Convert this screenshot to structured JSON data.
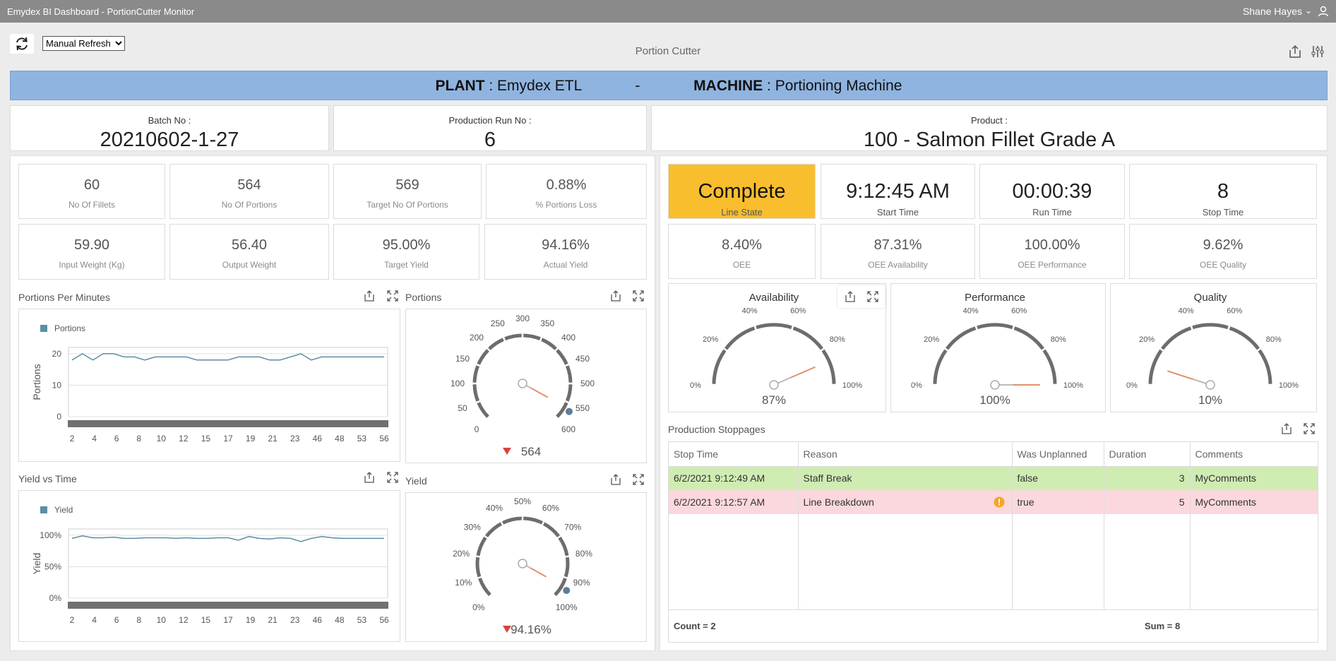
{
  "window": {
    "title": "Emydex BI  Dashboard - PortionCutter Monitor",
    "user": "Shane Hayes"
  },
  "toolbar": {
    "refresh_mode": "Manual Refresh",
    "dashboard_title": "Portion Cutter"
  },
  "banner": {
    "plant_label": "PLANT",
    "plant_value": "Emydex ETL",
    "separator": "-",
    "machine_label": "MACHINE",
    "machine_value": "Portioning Machine"
  },
  "header": {
    "batch": {
      "label": "Batch No :",
      "value": "20210602-1-27"
    },
    "run": {
      "label": "Production Run No :",
      "value": "6"
    },
    "product": {
      "label": "Product :",
      "value": "100  -  Salmon Fillet Grade A"
    }
  },
  "left_kpis": [
    {
      "value": "60",
      "label": "No Of Fillets"
    },
    {
      "value": "564",
      "label": "No Of Portions"
    },
    {
      "value": "569",
      "label": "Target No Of Portions"
    },
    {
      "value": "0.88%",
      "label": "% Portions Loss"
    },
    {
      "value": "59.90",
      "label": "Input Weight (Kg)"
    },
    {
      "value": "56.40",
      "label": "Output Weight"
    },
    {
      "value": "95.00%",
      "label": "Target Yield"
    },
    {
      "value": "94.16%",
      "label": "Actual Yield"
    }
  ],
  "right_kpis_top": [
    {
      "value": "Complete",
      "label": "Line State"
    },
    {
      "value": "9:12:45 AM",
      "label": "Start Time"
    },
    {
      "value": "00:00:39",
      "label": "Run Time"
    },
    {
      "value": "8",
      "label": "Stop Time"
    }
  ],
  "right_kpis_bottom": [
    {
      "value": "8.40%",
      "label": "OEE"
    },
    {
      "value": "87.31%",
      "label": "OEE Availability"
    },
    {
      "value": "100.00%",
      "label": "OEE Performance"
    },
    {
      "value": "9.62%",
      "label": "OEE Quality"
    }
  ],
  "colors": {
    "line": "#5b8fa3",
    "needle": "#e0916a",
    "complete": "#f9be2d",
    "banner": "#8fb4df",
    "arrow_down": "#d9443a"
  },
  "chart_data": [
    {
      "type": "line",
      "title": "Portions Per Minutes",
      "ylabel": "Portions",
      "legend": "Portions",
      "ylim": [
        0,
        22
      ],
      "yticks": [
        0,
        10,
        20
      ],
      "xtick_labels": [
        "2",
        "4",
        "6",
        "8",
        "10",
        "12",
        "15",
        "17",
        "19",
        "21",
        "23",
        "46",
        "48",
        "53",
        "56"
      ],
      "series": [
        {
          "name": "Portions",
          "values": [
            18,
            20,
            18,
            20,
            20,
            19,
            19,
            18,
            19,
            19,
            19,
            19,
            18,
            18,
            18,
            18,
            19,
            19,
            19,
            18,
            18,
            19,
            20,
            18,
            19,
            19,
            19,
            19,
            19,
            19,
            19
          ]
        }
      ]
    },
    {
      "type": "line",
      "title": "Yield vs Time",
      "ylabel": "Yield",
      "legend": "Yield",
      "ylim": [
        0,
        110
      ],
      "yticks": [
        "0%",
        "50%",
        "100%"
      ],
      "yvals": [
        0,
        50,
        100
      ],
      "xtick_labels": [
        "2",
        "4",
        "6",
        "8",
        "10",
        "12",
        "15",
        "17",
        "19",
        "21",
        "23",
        "46",
        "48",
        "53",
        "56"
      ],
      "series": [
        {
          "name": "Yield",
          "values": [
            95,
            99,
            96,
            96,
            97,
            95,
            95,
            96,
            96,
            96,
            95,
            96,
            95,
            95,
            96,
            96,
            92,
            98,
            95,
            94,
            96,
            95,
            90,
            95,
            98,
            96,
            95,
            95,
            95,
            95,
            95
          ]
        }
      ]
    }
  ],
  "gauges": {
    "portions": {
      "title": "Portions",
      "min": 0,
      "max": 600,
      "value": 564,
      "value_label": "564",
      "ticks": [
        "0",
        "50",
        "100",
        "150",
        "200",
        "250",
        "300",
        "350",
        "400",
        "450",
        "500",
        "550",
        "600"
      ],
      "target": 569
    },
    "yield": {
      "title": "Yield",
      "min": 0,
      "max": 100,
      "value": 94.16,
      "value_label": "94.16%",
      "ticks": [
        "0%",
        "10%",
        "20%",
        "30%",
        "40%",
        "50%",
        "60%",
        "70%",
        "80%",
        "90%",
        "100%"
      ],
      "target": 95
    },
    "availability": {
      "title": "Availability",
      "value": 87,
      "value_label": "87%",
      "ticks": [
        "0%",
        "20%",
        "40%",
        "60%",
        "80%",
        "100%"
      ]
    },
    "performance": {
      "title": "Performance",
      "value": 100,
      "value_label": "100%",
      "ticks": [
        "0%",
        "20%",
        "40%",
        "60%",
        "80%",
        "100%"
      ]
    },
    "quality": {
      "title": "Quality",
      "value": 10,
      "value_label": "10%",
      "ticks": [
        "0%",
        "20%",
        "40%",
        "60%",
        "80%",
        "100%"
      ]
    }
  },
  "stoppages": {
    "title": "Production Stoppages",
    "columns": [
      "Stop Time",
      "Reason",
      "Was Unplanned",
      "Duration",
      "Comments"
    ],
    "rows": [
      {
        "stop_time": "6/2/2021 9:12:49 AM",
        "reason": "Staff Break",
        "unplanned": "false",
        "duration": "3",
        "comments": "MyComments"
      },
      {
        "stop_time": "6/2/2021 9:12:57 AM",
        "reason": "Line Breakdown",
        "unplanned": "true",
        "duration": "5",
        "comments": "MyComments"
      }
    ],
    "count_label": "Count = 2",
    "sum_label": "Sum = 8"
  }
}
